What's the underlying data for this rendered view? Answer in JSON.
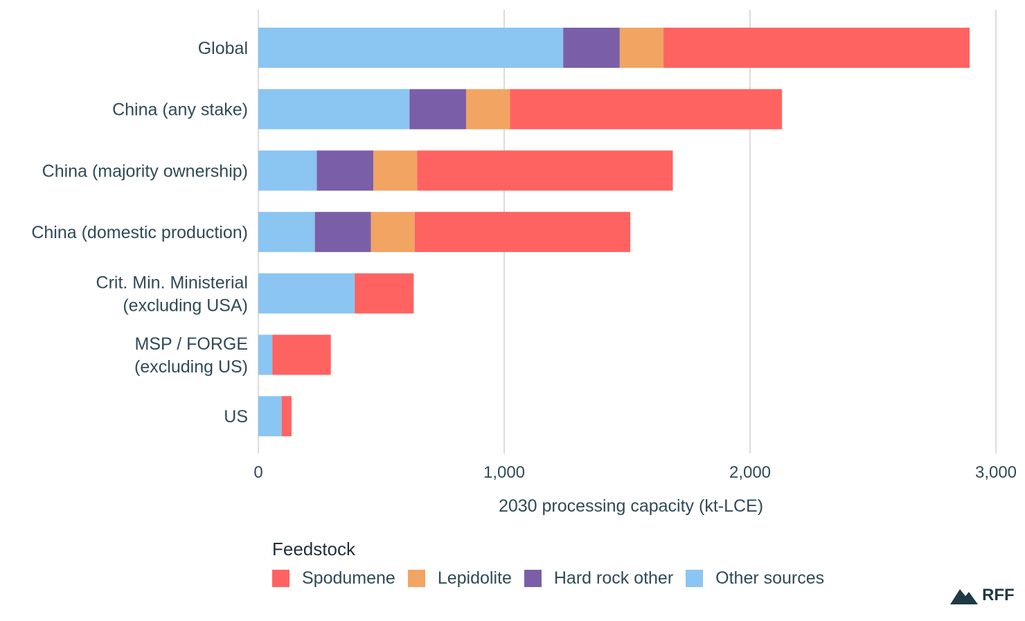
{
  "chart_data": {
    "type": "bar",
    "orientation": "horizontal",
    "stacked": true,
    "categories": [
      [
        "Global"
      ],
      [
        "China (any stake)"
      ],
      [
        "China (majority ownership)"
      ],
      [
        "China (domestic production)"
      ],
      [
        "Crit. Min. Ministerial",
        "(excluding USA)"
      ],
      [
        "MSP / FORGE",
        "(excluding US)"
      ],
      [
        "US"
      ]
    ],
    "series": [
      {
        "name": "Other sources",
        "color": "#8bc5f2",
        "values": [
          1240,
          615,
          238,
          230,
          392,
          57,
          95
        ]
      },
      {
        "name": "Hard rock other",
        "color": "#7a5fa8",
        "values": [
          230,
          230,
          230,
          228,
          0,
          0,
          0
        ]
      },
      {
        "name": "Lepidolite",
        "color": "#f2a462",
        "values": [
          178,
          178,
          178,
          178,
          0,
          0,
          0
        ]
      },
      {
        "name": "Spodumene",
        "color": "#ff6361",
        "values": [
          1245,
          1107,
          1040,
          877,
          240,
          238,
          40
        ]
      }
    ],
    "xlim": [
      0,
      3000
    ],
    "xticks": [
      0,
      1000,
      2000,
      3000
    ],
    "xtick_labels": [
      "0",
      "1,000",
      "2,000",
      "3,000"
    ],
    "xlabel": "2030 processing capacity (kt-LCE)",
    "grid": "vertical",
    "legend_title": "Feedstock",
    "legend_order": [
      "Spodumene",
      "Lepidolite",
      "Hard rock other",
      "Other sources"
    ],
    "legend_position": "bottom"
  },
  "brand": {
    "text": "RFF",
    "icon": "mountain-icon"
  }
}
